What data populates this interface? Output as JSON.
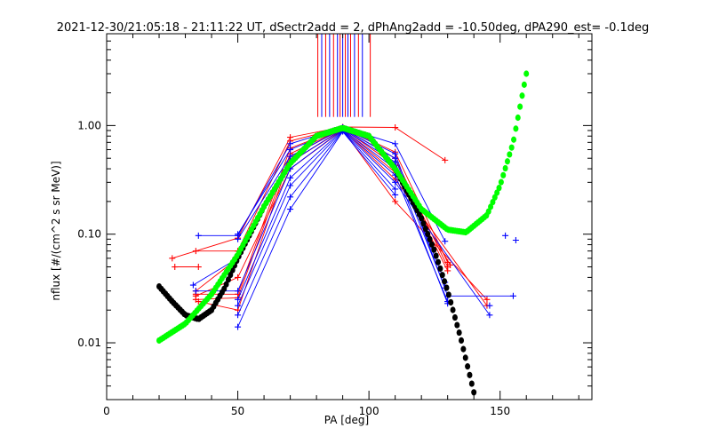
{
  "chart_data": {
    "type": "scatter",
    "title": "2021-12-30/21:05:18 - 21:11:22 UT, dSectr2add = 2, dPhAng2add = -10.50deg, dPA290_est=  -0.1deg",
    "xlabel": "PA [deg]",
    "ylabel": "nflux [#/(cm^2 s sr MeV)]",
    "xlim": [
      0,
      185
    ],
    "ylim": [
      0.003,
      7
    ],
    "yscale": "log",
    "xticks": [
      0,
      50,
      100,
      150
    ],
    "xtick_labels": [
      "0",
      "50",
      "100",
      "150"
    ],
    "yticks": [
      0.01,
      0.1,
      1.0
    ],
    "ytick_labels": [
      "0.01",
      "0.10",
      "1.00"
    ],
    "grid": false,
    "colors": {
      "red_series": "#ff0000",
      "blue_series": "#0000ff",
      "green_fit": "#00ff00",
      "black_fit": "#000000",
      "axes": "#000000"
    },
    "vertical_markers": [
      {
        "x": 80.5,
        "color": "red"
      },
      {
        "x": 82.0,
        "color": "blue"
      },
      {
        "x": 83.5,
        "color": "red"
      },
      {
        "x": 85.0,
        "color": "blue"
      },
      {
        "x": 86.5,
        "color": "red"
      },
      {
        "x": 88.0,
        "color": "blue"
      },
      {
        "x": 89.0,
        "color": "red"
      },
      {
        "x": 90.0,
        "color": "blue"
      },
      {
        "x": 91.0,
        "color": "red"
      },
      {
        "x": 92.0,
        "color": "blue"
      },
      {
        "x": 93.0,
        "color": "red"
      },
      {
        "x": 94.5,
        "color": "blue"
      },
      {
        "x": 96.0,
        "color": "red"
      },
      {
        "x": 97.5,
        "color": "blue"
      },
      {
        "x": 100.5,
        "color": "red"
      }
    ],
    "sweeps": [
      {
        "color": "red",
        "points": [
          [
            25,
            0.06
          ],
          [
            50,
            0.092
          ],
          [
            70,
            0.78
          ],
          [
            90,
            0.97
          ],
          [
            110,
            0.96
          ],
          [
            129,
            0.48
          ]
        ]
      },
      {
        "color": "red",
        "points": [
          [
            26,
            0.05
          ],
          [
            35,
            0.05
          ]
        ]
      },
      {
        "color": "red",
        "points": [
          [
            34,
            0.07
          ],
          [
            50,
            0.07
          ],
          [
            70,
            0.72
          ],
          [
            90,
            0.96
          ],
          [
            110,
            0.57
          ],
          [
            130,
            0.055
          ]
        ]
      },
      {
        "color": "red",
        "points": [
          [
            34,
            0.028
          ],
          [
            50,
            0.028
          ],
          [
            70,
            0.62
          ],
          [
            90,
            0.95
          ],
          [
            110,
            0.5
          ],
          [
            130,
            0.05
          ]
        ]
      },
      {
        "color": "red",
        "points": [
          [
            34,
            0.025
          ],
          [
            50,
            0.026
          ],
          [
            70,
            0.55
          ],
          [
            90,
            0.94
          ],
          [
            110,
            0.43
          ],
          [
            130,
            0.046
          ]
        ]
      },
      {
        "color": "red",
        "points": [
          [
            35,
            0.024
          ],
          [
            50,
            0.02
          ],
          [
            70,
            0.52
          ],
          [
            90,
            0.93
          ],
          [
            110,
            0.37
          ],
          [
            131,
            0.052
          ]
        ]
      },
      {
        "color": "red",
        "points": [
          [
            34,
            0.03
          ],
          [
            50,
            0.06
          ],
          [
            70,
            0.46
          ],
          [
            90,
            0.92
          ],
          [
            110,
            0.32
          ],
          [
            145,
            0.022
          ]
        ]
      },
      {
        "color": "red",
        "points": [
          [
            34,
            0.027
          ],
          [
            50,
            0.04
          ],
          [
            70,
            0.4
          ],
          [
            90,
            0.91
          ],
          [
            110,
            0.2
          ],
          [
            145,
            0.025
          ]
        ]
      },
      {
        "color": "blue",
        "points": [
          [
            35,
            0.097
          ],
          [
            50,
            0.097
          ],
          [
            70,
            0.68
          ],
          [
            90,
            0.96
          ],
          [
            110,
            0.68
          ],
          [
            129,
            0.086
          ]
        ]
      },
      {
        "color": "blue",
        "points": [
          [
            50,
            0.1
          ],
          [
            70,
            0.6
          ],
          [
            90,
            0.95
          ],
          [
            110,
            0.55
          ],
          [
            130,
            0.027
          ],
          [
            155,
            0.027
          ]
        ]
      },
      {
        "color": "blue",
        "points": [
          [
            50,
            0.09
          ],
          [
            70,
            0.52
          ],
          [
            90,
            0.94
          ],
          [
            110,
            0.5
          ],
          [
            129,
            0.036
          ]
        ]
      },
      {
        "color": "blue",
        "points": [
          [
            33,
            0.034
          ],
          [
            50,
            0.06
          ],
          [
            70,
            0.46
          ],
          [
            90,
            0.93
          ],
          [
            110,
            0.46
          ],
          [
            129,
            0.032
          ]
        ]
      },
      {
        "color": "blue",
        "points": [
          [
            34,
            0.03
          ],
          [
            50,
            0.03
          ],
          [
            70,
            0.4
          ],
          [
            90,
            0.92
          ],
          [
            110,
            0.4
          ],
          [
            130,
            0.023
          ]
        ]
      },
      {
        "color": "blue",
        "points": [
          [
            50,
            0.025
          ],
          [
            70,
            0.33
          ],
          [
            90,
            0.91
          ],
          [
            110,
            0.35
          ],
          [
            130,
            0.024
          ]
        ]
      },
      {
        "color": "blue",
        "points": [
          [
            50,
            0.022
          ],
          [
            70,
            0.28
          ],
          [
            90,
            0.9
          ],
          [
            110,
            0.3
          ],
          [
            146,
            0.018
          ]
        ]
      },
      {
        "color": "blue",
        "points": [
          [
            50,
            0.018
          ],
          [
            70,
            0.22
          ],
          [
            90,
            0.89
          ],
          [
            110,
            0.26
          ]
        ]
      },
      {
        "color": "blue",
        "points": [
          [
            50,
            0.014
          ],
          [
            70,
            0.17
          ],
          [
            90,
            0.88
          ],
          [
            110,
            0.23
          ]
        ]
      }
    ],
    "isolated_points": [
      {
        "color": "blue",
        "x": 152,
        "y": 0.097
      },
      {
        "color": "blue",
        "x": 156,
        "y": 0.088
      },
      {
        "color": "blue",
        "x": 146,
        "y": 0.022
      }
    ],
    "green_fit": {
      "description_points": [
        [
          20,
          0.0105
        ],
        [
          30,
          0.015
        ],
        [
          40,
          0.028
        ],
        [
          50,
          0.065
        ],
        [
          60,
          0.18
        ],
        [
          70,
          0.45
        ],
        [
          80,
          0.8
        ],
        [
          90,
          0.95
        ],
        [
          100,
          0.8
        ],
        [
          110,
          0.4
        ],
        [
          120,
          0.17
        ],
        [
          130,
          0.11
        ],
        [
          137,
          0.104
        ],
        [
          145,
          0.15
        ],
        [
          150,
          0.28
        ],
        [
          155,
          0.7
        ],
        [
          160,
          3.0
        ]
      ]
    },
    "black_fit": {
      "description_points": [
        [
          20,
          0.033
        ],
        [
          25,
          0.024
        ],
        [
          30,
          0.018
        ],
        [
          35,
          0.0165
        ],
        [
          40,
          0.02
        ],
        [
          45,
          0.032
        ],
        [
          50,
          0.06
        ],
        [
          60,
          0.18
        ],
        [
          70,
          0.45
        ],
        [
          80,
          0.8
        ],
        [
          90,
          0.95
        ],
        [
          100,
          0.8
        ],
        [
          110,
          0.4
        ],
        [
          120,
          0.14
        ],
        [
          125,
          0.07
        ],
        [
          130,
          0.03
        ],
        [
          135,
          0.011
        ],
        [
          140,
          0.0035
        ]
      ]
    }
  }
}
